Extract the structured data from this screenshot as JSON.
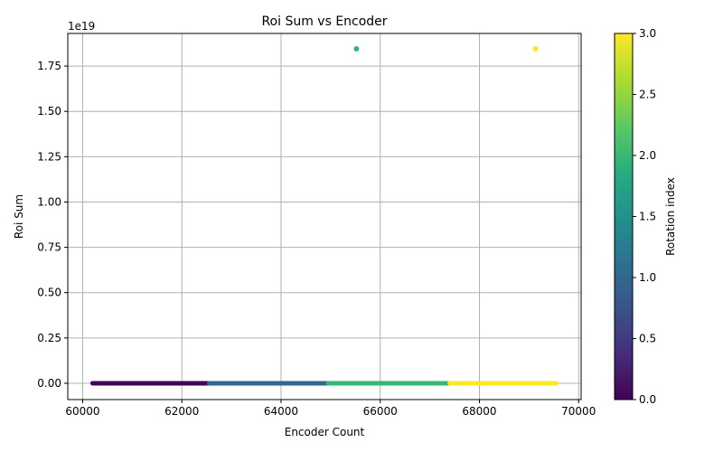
{
  "chart_data": {
    "type": "scatter",
    "title": "Roi Sum vs Encoder",
    "xlabel": "Encoder Count",
    "ylabel": "Roi Sum",
    "y_exponent_label": "1e19",
    "xlim": [
      59700,
      70050
    ],
    "ylim": [
      -0.09,
      1.93
    ],
    "y_scale_factor": 1e+19,
    "x_ticks": [
      60000,
      62000,
      64000,
      66000,
      68000,
      70000
    ],
    "x_tick_labels": [
      "60000",
      "62000",
      "64000",
      "66000",
      "68000",
      "70000"
    ],
    "y_ticks": [
      0.0,
      0.25,
      0.5,
      0.75,
      1.0,
      1.25,
      1.5,
      1.75
    ],
    "y_tick_labels": [
      "0.00",
      "0.25",
      "0.50",
      "0.75",
      "1.00",
      "1.25",
      "1.50",
      "1.75"
    ],
    "grid": true,
    "colorbar": {
      "label": "Rotation index",
      "min": 0.0,
      "max": 3.0,
      "colormap": "viridis",
      "ticks": [
        0.0,
        0.5,
        1.0,
        1.5,
        2.0,
        2.5,
        3.0
      ],
      "tick_labels": [
        "0.0",
        "0.5",
        "1.0",
        "1.5",
        "2.0",
        "2.5",
        "3.0"
      ]
    },
    "segments": [
      {
        "rotation_index": 0,
        "x_start": 60200,
        "x_end": 62550,
        "y": 0.0,
        "color": "#440154"
      },
      {
        "rotation_index": 1,
        "x_start": 62550,
        "x_end": 64950,
        "y": 0.0,
        "color": "#31688e"
      },
      {
        "rotation_index": 2,
        "x_start": 64950,
        "x_end": 67400,
        "y": 0.0,
        "color": "#35b779"
      },
      {
        "rotation_index": 3,
        "x_start": 67400,
        "x_end": 69550,
        "y": 0.0,
        "color": "#fde725"
      }
    ],
    "outliers": [
      {
        "x": 65520,
        "y": 1.845,
        "rotation_index": 2,
        "color": "#35b779"
      },
      {
        "x": 69130,
        "y": 1.845,
        "rotation_index": 3,
        "color": "#fde725"
      }
    ]
  }
}
